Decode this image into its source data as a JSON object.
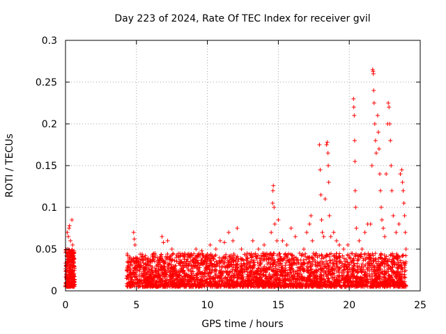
{
  "chart_data": {
    "type": "scatter",
    "title": "Day 223 of 2024, Rate Of TEC Index for receiver gvil",
    "xlabel": "GPS time / hours",
    "ylabel": "ROTI / TECUs",
    "xlim": [
      0,
      25
    ],
    "ylim": [
      0,
      0.3
    ],
    "x_ticks": [
      0,
      5,
      10,
      15,
      20,
      25
    ],
    "x_tick_labels": [
      "0",
      "5",
      "10",
      "15",
      "20",
      "25"
    ],
    "y_ticks": [
      0,
      0.05,
      0.1,
      0.15,
      0.2,
      0.25,
      0.3
    ],
    "y_tick_labels": [
      "0",
      "0.05",
      "0.1",
      "0.15",
      "0.2",
      "0.25",
      "0.3"
    ],
    "grid": true,
    "marker": "+",
    "color": "#ff0000",
    "series": [
      {
        "name": "ROTI",
        "points": [
          [
            0.05,
            0.02
          ],
          [
            0.1,
            0.035
          ],
          [
            0.15,
            0.05
          ],
          [
            0.2,
            0.065
          ],
          [
            0.25,
            0.075
          ],
          [
            0.3,
            0.03
          ],
          [
            0.35,
            0.06
          ],
          [
            0.4,
            0.045
          ],
          [
            0.45,
            0.085
          ],
          [
            0.5,
            0.025
          ],
          [
            0.55,
            0.04
          ],
          [
            0.6,
            0.03
          ],
          [
            0.08,
            0.01
          ],
          [
            0.22,
            0.015
          ],
          [
            0.38,
            0.012
          ],
          [
            0.5,
            0.055
          ],
          [
            0.12,
            0.07
          ],
          [
            0.28,
            0.078
          ],
          [
            4.4,
            0.03
          ],
          [
            4.6,
            0.025
          ],
          [
            4.8,
            0.07
          ],
          [
            4.85,
            0.062
          ],
          [
            4.9,
            0.055
          ],
          [
            5.0,
            0.035
          ],
          [
            5.3,
            0.028
          ],
          [
            5.6,
            0.04
          ],
          [
            6.0,
            0.03
          ],
          [
            6.3,
            0.045
          ],
          [
            6.6,
            0.038
          ],
          [
            6.8,
            0.065
          ],
          [
            6.9,
            0.058
          ],
          [
            7.2,
            0.06
          ],
          [
            7.5,
            0.05
          ],
          [
            7.8,
            0.04
          ],
          [
            8.1,
            0.035
          ],
          [
            8.4,
            0.045
          ],
          [
            8.8,
            0.04
          ],
          [
            9.2,
            0.05
          ],
          [
            9.6,
            0.048
          ],
          [
            9.9,
            0.04
          ],
          [
            10.2,
            0.055
          ],
          [
            10.6,
            0.05
          ],
          [
            10.9,
            0.06
          ],
          [
            11.2,
            0.058
          ],
          [
            11.5,
            0.07
          ],
          [
            11.8,
            0.06
          ],
          [
            12.1,
            0.075
          ],
          [
            12.4,
            0.05
          ],
          [
            12.8,
            0.045
          ],
          [
            13.2,
            0.06
          ],
          [
            13.6,
            0.05
          ],
          [
            14.0,
            0.055
          ],
          [
            14.5,
            0.07
          ],
          [
            14.6,
            0.105
          ],
          [
            14.62,
            0.12
          ],
          [
            14.65,
            0.126
          ],
          [
            14.7,
            0.1
          ],
          [
            14.75,
            0.08
          ],
          [
            14.9,
            0.06
          ],
          [
            15.0,
            0.085
          ],
          [
            15.3,
            0.06
          ],
          [
            15.6,
            0.055
          ],
          [
            15.9,
            0.075
          ],
          [
            16.2,
            0.065
          ],
          [
            16.5,
            0.045
          ],
          [
            16.8,
            0.05
          ],
          [
            17.0,
            0.07
          ],
          [
            17.2,
            0.08
          ],
          [
            17.3,
            0.09
          ],
          [
            17.4,
            0.06
          ],
          [
            17.9,
            0.175
          ],
          [
            17.95,
            0.145
          ],
          [
            18.0,
            0.115
          ],
          [
            18.05,
            0.085
          ],
          [
            18.1,
            0.07
          ],
          [
            18.2,
            0.065
          ],
          [
            18.3,
            0.11
          ],
          [
            18.4,
            0.175
          ],
          [
            18.45,
            0.178
          ],
          [
            18.5,
            0.165
          ],
          [
            18.52,
            0.15
          ],
          [
            18.55,
            0.13
          ],
          [
            18.6,
            0.09
          ],
          [
            18.7,
            0.065
          ],
          [
            18.9,
            0.07
          ],
          [
            19.1,
            0.06
          ],
          [
            19.3,
            0.055
          ],
          [
            19.6,
            0.05
          ],
          [
            19.9,
            0.055
          ],
          [
            20.3,
            0.23
          ],
          [
            20.32,
            0.22
          ],
          [
            20.35,
            0.21
          ],
          [
            20.38,
            0.18
          ],
          [
            20.4,
            0.155
          ],
          [
            20.42,
            0.12
          ],
          [
            20.45,
            0.1
          ],
          [
            20.5,
            0.075
          ],
          [
            20.7,
            0.06
          ],
          [
            20.9,
            0.05
          ],
          [
            21.1,
            0.07
          ],
          [
            21.3,
            0.08
          ],
          [
            21.5,
            0.08
          ],
          [
            21.6,
            0.15
          ],
          [
            21.65,
            0.265
          ],
          [
            21.68,
            0.263
          ],
          [
            21.7,
            0.26
          ],
          [
            21.72,
            0.24
          ],
          [
            21.75,
            0.225
          ],
          [
            21.8,
            0.2
          ],
          [
            21.85,
            0.18
          ],
          [
            21.9,
            0.165
          ],
          [
            22.0,
            0.21
          ],
          [
            22.05,
            0.19
          ],
          [
            22.1,
            0.17
          ],
          [
            22.15,
            0.14
          ],
          [
            22.2,
            0.12
          ],
          [
            22.25,
            0.1
          ],
          [
            22.3,
            0.085
          ],
          [
            22.4,
            0.075
          ],
          [
            22.5,
            0.065
          ],
          [
            22.6,
            0.14
          ],
          [
            22.7,
            0.2
          ],
          [
            22.75,
            0.225
          ],
          [
            22.8,
            0.22
          ],
          [
            22.85,
            0.2
          ],
          [
            22.9,
            0.18
          ],
          [
            22.95,
            0.15
          ],
          [
            23.0,
            0.12
          ],
          [
            23.1,
            0.09
          ],
          [
            23.3,
            0.07
          ],
          [
            23.5,
            0.08
          ],
          [
            23.6,
            0.14
          ],
          [
            23.7,
            0.145
          ],
          [
            23.75,
            0.13
          ],
          [
            23.8,
            0.12
          ],
          [
            23.85,
            0.105
          ],
          [
            23.9,
            0.09
          ],
          [
            23.95,
            0.07
          ],
          [
            24.0,
            0.05
          ]
        ]
      }
    ]
  }
}
